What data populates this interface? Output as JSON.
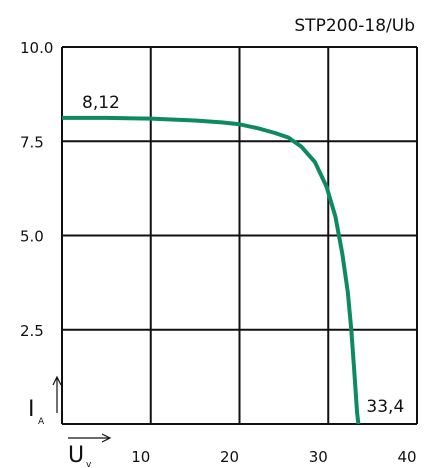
{
  "chart_data": {
    "type": "line",
    "title": "STP200-18/Ub",
    "xlabel": "U",
    "xlabel_sub": "v",
    "ylabel": "I",
    "ylabel_sub": "A",
    "xlim": [
      0,
      40
    ],
    "ylim": [
      0,
      10
    ],
    "x_ticks": [
      10,
      20,
      30,
      40
    ],
    "x_tick_labels": [
      "10",
      "20",
      "30",
      "40"
    ],
    "y_ticks": [
      2.5,
      5.0,
      7.5,
      10.0
    ],
    "y_tick_labels": [
      "2.5",
      "5.0",
      "7.5",
      "10.0"
    ],
    "grid": true,
    "series": [
      {
        "color": "#0e8a63",
        "x": [
          0,
          5,
          10,
          15,
          18,
          20,
          22,
          24,
          25.5,
          27,
          28.5,
          29.8,
          30.8,
          31.6,
          32.2,
          32.6,
          32.9,
          33.1,
          33.25,
          33.4
        ],
        "y": [
          8.12,
          8.12,
          8.1,
          8.05,
          8.0,
          7.95,
          7.85,
          7.72,
          7.6,
          7.35,
          6.95,
          6.3,
          5.5,
          4.5,
          3.5,
          2.5,
          1.5,
          0.8,
          0.3,
          0.0
        ]
      }
    ],
    "annotations": [
      {
        "text": "8,12",
        "x": 0,
        "y": 8.12
      },
      {
        "text": "33,4",
        "x": 33.4,
        "y": 0
      }
    ]
  }
}
